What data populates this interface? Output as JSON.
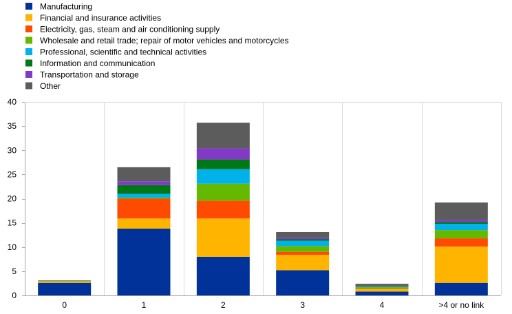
{
  "chart_data": {
    "type": "bar",
    "stacked": true,
    "title": "",
    "xlabel": "",
    "ylabel": "",
    "ylim": [
      0,
      40
    ],
    "yticks": [
      0,
      5,
      10,
      15,
      20,
      25,
      30,
      35,
      40
    ],
    "grid": "vertical category dividers",
    "legend_position": "top-left",
    "categories": [
      "0",
      "1",
      "2",
      "3",
      "4",
      ">4 or no link"
    ],
    "series": [
      {
        "name": "Manufacturing",
        "color": "#003299",
        "values": [
          2.6,
          13.8,
          8.0,
          5.2,
          0.8,
          2.6
        ]
      },
      {
        "name": "Financial and insurance activities",
        "color": "#FFB400",
        "values": [
          0.3,
          2.1,
          7.9,
          3.2,
          0.5,
          7.5
        ]
      },
      {
        "name": "Electricity, gas, steam and air conditioning supply",
        "color": "#FF4B00",
        "values": [
          0.0,
          4.1,
          3.7,
          0.6,
          0.1,
          1.7
        ]
      },
      {
        "name": "Wholesale and retail trade; repair of motor vehicles and motorcycles",
        "color": "#65B800",
        "values": [
          0.1,
          0.2,
          3.5,
          1.2,
          0.3,
          1.7
        ]
      },
      {
        "name": "Professional, scientific and technical activities",
        "color": "#00B1EA",
        "values": [
          0.0,
          0.8,
          3.0,
          1.1,
          0.1,
          1.3
        ]
      },
      {
        "name": "Information and communication",
        "color": "#007816",
        "values": [
          0.0,
          1.8,
          2.0,
          0.3,
          0.1,
          0.4
        ]
      },
      {
        "name": "Transportation and storage",
        "color": "#8139C6",
        "values": [
          0.0,
          0.8,
          2.3,
          0.3,
          0.1,
          0.4
        ]
      },
      {
        "name": "Other",
        "color": "#5C5C5C",
        "values": [
          0.1,
          2.9,
          5.3,
          1.2,
          0.4,
          3.6
        ]
      }
    ]
  }
}
